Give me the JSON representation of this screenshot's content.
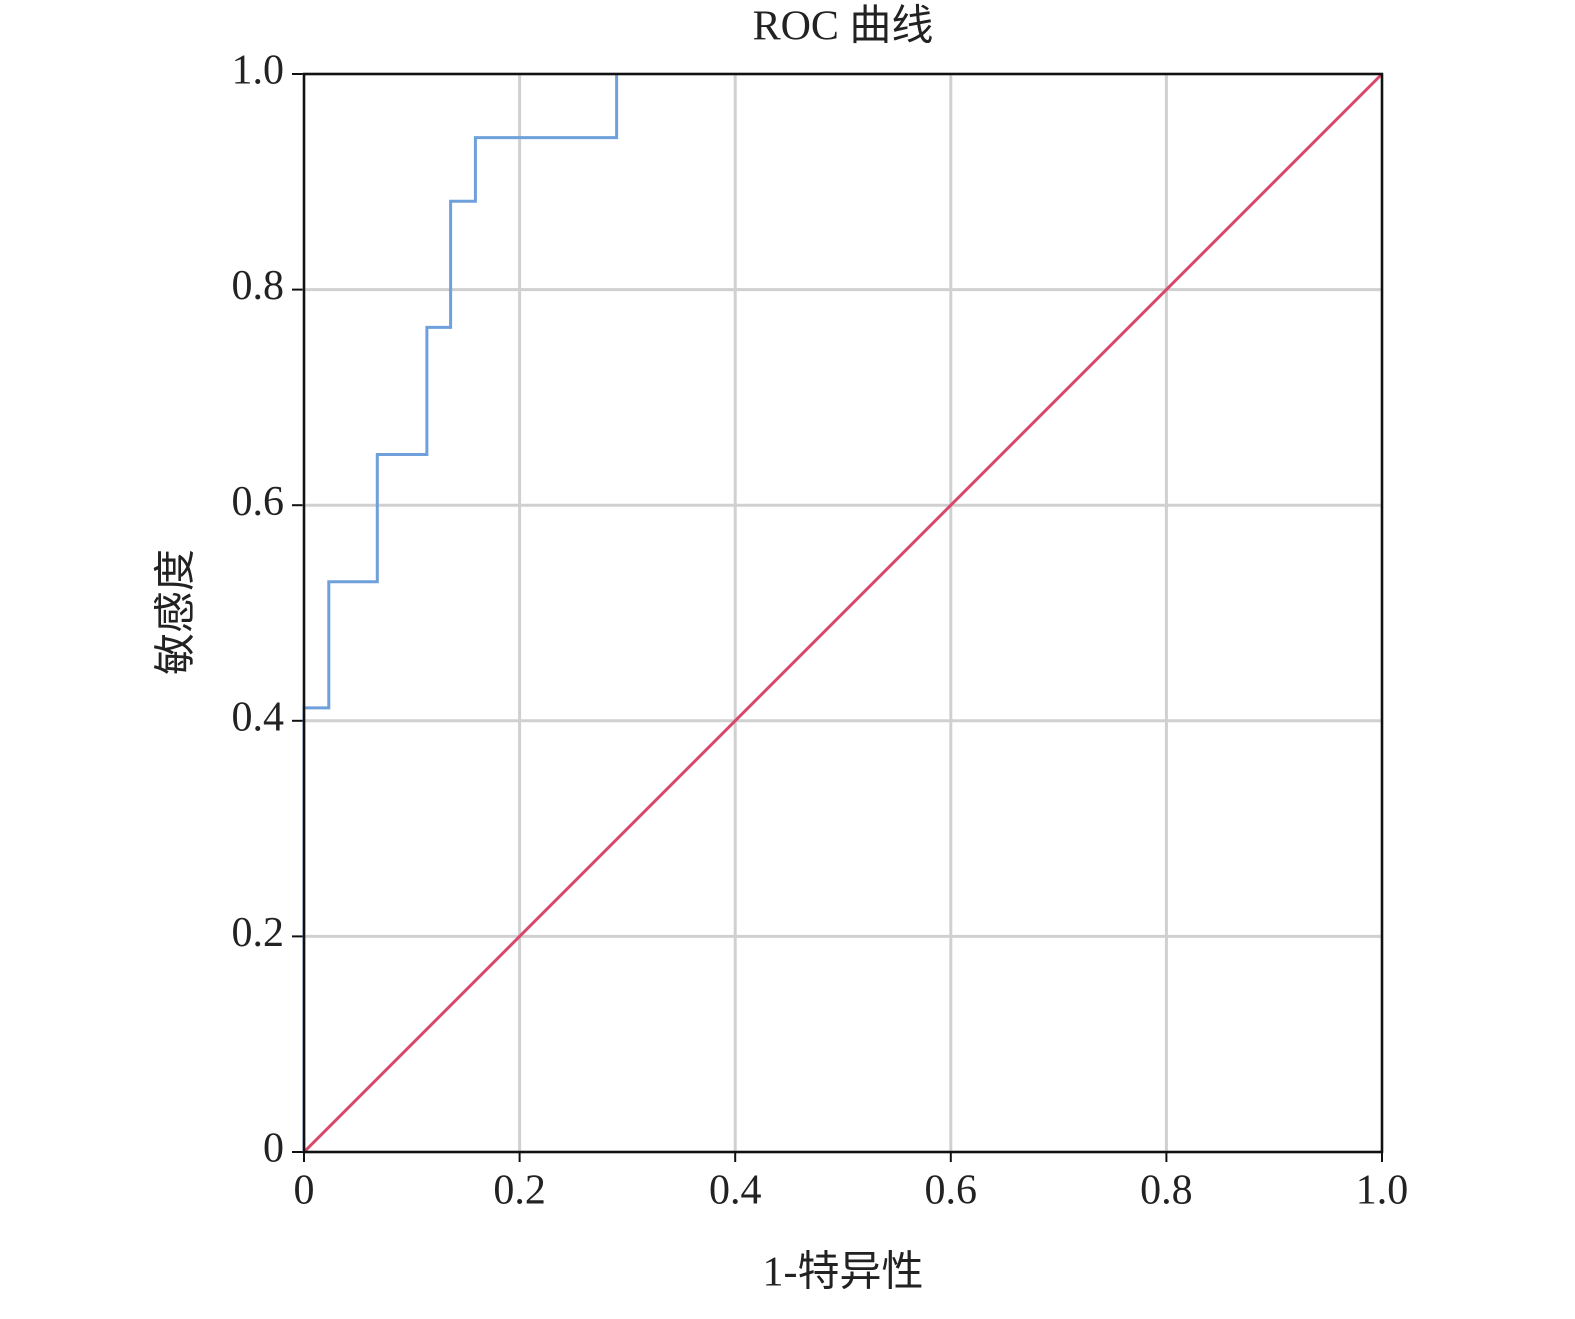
{
  "chart_data": {
    "type": "line",
    "title": "ROC 曲线",
    "x_label": "1-特异性",
    "y_label": "敏感度",
    "series": [
      {
        "color": "#6fa0dc",
        "x": [
          0,
          0,
          0.023,
          0.023,
          0.068,
          0.068,
          0.114,
          0.114,
          0.136,
          0.136,
          0.159,
          0.159,
          0.29,
          0.29
        ],
        "values": [
          0,
          0.412,
          0.412,
          0.529,
          0.529,
          0.647,
          0.647,
          0.765,
          0.765,
          0.882,
          0.882,
          0.941,
          0.941,
          1
        ]
      },
      {
        "color": "#d9476a",
        "x": [
          0,
          1
        ],
        "values": [
          0,
          1
        ]
      }
    ],
    "xlim": [
      0,
      1
    ],
    "ylim": [
      0,
      1
    ],
    "xticks": [
      0,
      0.2,
      0.4,
      0.6,
      0.8,
      {
        "value": 1,
        "label": "1.0"
      }
    ],
    "yticks": [
      0,
      0.2,
      0.4,
      0.6,
      0.8,
      {
        "value": 1,
        "label": "1.0"
      }
    ],
    "grid": true
  }
}
